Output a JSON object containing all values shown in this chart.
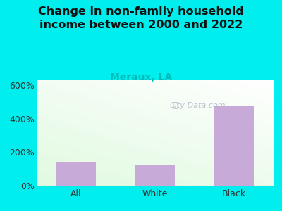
{
  "title": "Change in non-family household\nincome between 2000 and 2022",
  "subtitle": "Meraux, LA",
  "categories": [
    "All",
    "White",
    "Black"
  ],
  "values": [
    140,
    125,
    480
  ],
  "bar_color": "#c8aad8",
  "title_fontsize": 11.5,
  "subtitle_fontsize": 10,
  "subtitle_color": "#00bbbb",
  "title_color": "#111111",
  "background_color": "#00eeee",
  "tick_color": "#333333",
  "yticks": [
    0,
    200,
    400,
    600
  ],
  "ylim": [
    0,
    630
  ],
  "watermark": "City-Data.com",
  "watermark_color": "#b0b8c8"
}
